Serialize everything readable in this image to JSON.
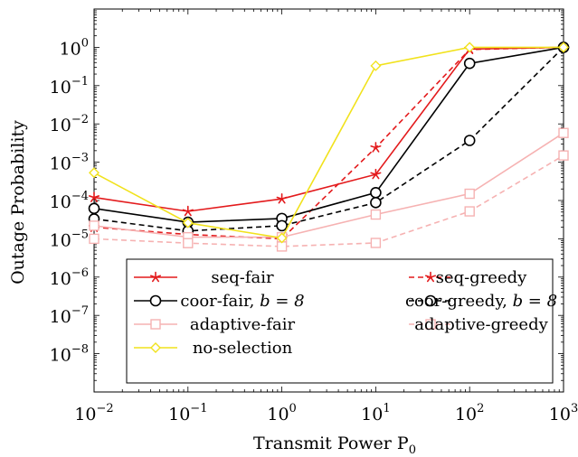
{
  "chart_data": {
    "type": "line",
    "xlabel": "Transmit Power P",
    "xlabel_sub": "0",
    "ylabel": "Outage Probability",
    "x_scale": "log",
    "y_scale": "log",
    "xlim": [
      0.01,
      1000
    ],
    "ylim": [
      1e-09,
      10
    ],
    "x_ticks": [
      {
        "value": 0.01,
        "base": "10",
        "exp": "−2"
      },
      {
        "value": 0.1,
        "base": "10",
        "exp": "−1"
      },
      {
        "value": 1,
        "base": "10",
        "exp": "0"
      },
      {
        "value": 10,
        "base": "10",
        "exp": "1"
      },
      {
        "value": 100,
        "base": "10",
        "exp": "2"
      },
      {
        "value": 1000,
        "base": "10",
        "exp": "3"
      }
    ],
    "y_ticks": [
      {
        "value": 1,
        "base": "10",
        "exp": "0"
      },
      {
        "value": 0.1,
        "base": "10",
        "exp": "−1"
      },
      {
        "value": 0.01,
        "base": "10",
        "exp": "−2"
      },
      {
        "value": 0.001,
        "base": "10",
        "exp": "−3"
      },
      {
        "value": 0.0001,
        "base": "10",
        "exp": "−4"
      },
      {
        "value": 1e-05,
        "base": "10",
        "exp": "−5"
      },
      {
        "value": 1e-06,
        "base": "10",
        "exp": "−6"
      },
      {
        "value": 1e-07,
        "base": "10",
        "exp": "−7"
      },
      {
        "value": 1e-08,
        "base": "10",
        "exp": "−8"
      }
    ],
    "x": [
      0.01,
      0.1,
      1,
      10,
      100,
      1000
    ],
    "series": [
      {
        "name": "seq-fair",
        "name_suffix": "",
        "color": "#e31a1c",
        "dash": "solid",
        "marker": "star",
        "values": [
          0.00012,
          5.2e-05,
          0.00011,
          0.00048,
          0.9,
          1.0
        ]
      },
      {
        "name": "seq-greedy",
        "name_suffix": "",
        "color": "#e31a1c",
        "dash": "dashed",
        "marker": "star",
        "values": [
          2e-05,
          1.3e-05,
          1e-05,
          0.0024,
          0.88,
          1.0
        ]
      },
      {
        "name": "coor-fair, ",
        "name_suffix": "b = 8",
        "color": "#000000",
        "dash": "solid",
        "marker": "circle",
        "values": [
          6.2e-05,
          2.7e-05,
          3.4e-05,
          0.00016,
          0.38,
          1.0
        ]
      },
      {
        "name": "coor-greedy, ",
        "name_suffix": "b = 8",
        "color": "#000000",
        "dash": "dashed",
        "marker": "circle",
        "values": [
          3.3e-05,
          1.6e-05,
          2.2e-05,
          8.8e-05,
          0.0037,
          1.0
        ]
      },
      {
        "name": "adaptive-fair",
        "name_suffix": "",
        "color": "#f6b2b2",
        "dash": "solid",
        "marker": "square",
        "values": [
          2.2e-05,
          1.1e-05,
          1.1e-05,
          4.3e-05,
          0.00015,
          0.0058
        ]
      },
      {
        "name": "adaptive-greedy",
        "name_suffix": "",
        "color": "#f6b2b2",
        "dash": "dashed",
        "marker": "square",
        "values": [
          1e-05,
          7.7e-06,
          6.3e-06,
          7.8e-06,
          5.2e-05,
          0.0015
        ]
      },
      {
        "name": "no-selection",
        "name_suffix": "",
        "color": "#f1e21c",
        "dash": "solid",
        "marker": "diamond",
        "values": [
          0.00053,
          2.6e-05,
          1.05e-05,
          0.33,
          1.0,
          1.0
        ]
      }
    ],
    "legend_placement": "bottom-center inside plot",
    "grid": false
  }
}
